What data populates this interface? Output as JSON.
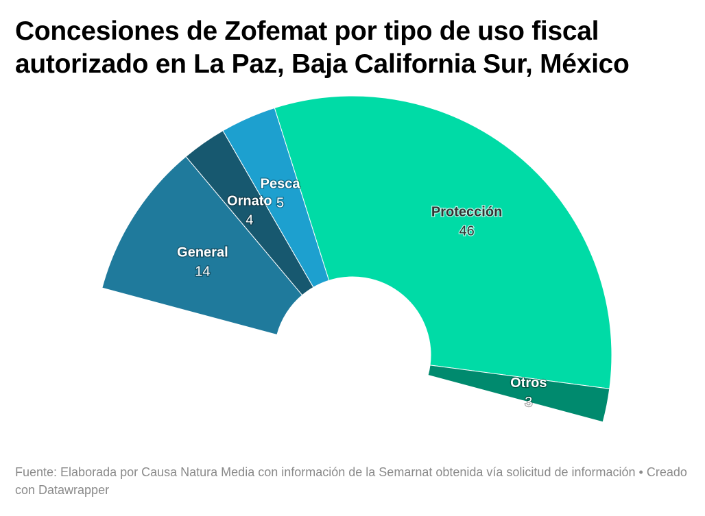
{
  "title_line1": "Concesiones de Zofemat por tipo de uso fiscal",
  "title_line2": "autorizado en La Paz, Baja California Sur, México",
  "footer": {
    "source": "Fuente: Elaborada por Causa Natura Media con información de la Semarnat obtenida vía solicitud de información",
    "separator": "•",
    "credit": "Creado con Datawrapper"
  },
  "chart_data": {
    "type": "pie",
    "variant": "half-donut",
    "title": "Concesiones de Zofemat por tipo de uso fiscal autorizado en La Paz, Baja California Sur, México",
    "categories": [
      "General",
      "Ornato",
      "Pesca",
      "Protección",
      "Otros"
    ],
    "values": [
      14,
      4,
      5,
      46,
      3
    ],
    "colors": [
      "#1f7a9c",
      "#17586f",
      "#1da0cf",
      "#00dba6",
      "#008a6e"
    ],
    "label_colors": [
      "#ffffff",
      "#ffffff",
      "#ffffff",
      "#333333",
      "#ffffff"
    ],
    "legend": "none",
    "grid": false
  }
}
